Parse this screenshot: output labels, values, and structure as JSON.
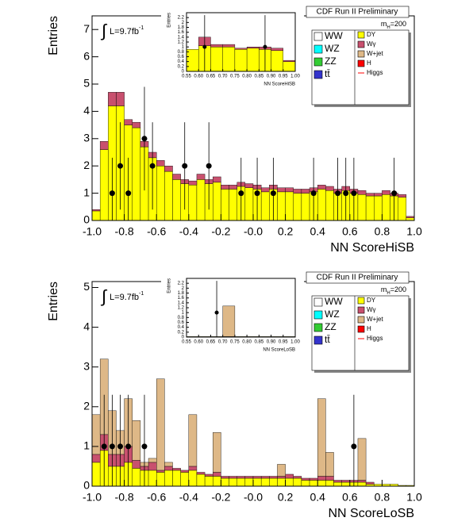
{
  "chart_data": [
    {
      "type": "histogram",
      "y_label": "Entries",
      "x_label": "NN ScoreHiSB",
      "header": "CDF Run II Preliminary",
      "mass_label": [
        "m",
        "H",
        "=200"
      ],
      "lumi_label": [
        "∫",
        "L=9.7fb",
        "-1"
      ],
      "xlim": [
        -1,
        1
      ],
      "ylim": [
        0,
        7.5
      ],
      "xticks": [
        {
          "value": -1,
          "label": "-1.0"
        },
        -0.8,
        -0.6,
        -0.4,
        -0.2,
        {
          "value": 0,
          "label": "-0.0"
        },
        0.2,
        0.4,
        0.6,
        0.8,
        {
          "value": 1,
          "label": "1.0"
        }
      ],
      "yticks": [
        0,
        1,
        2,
        3,
        4,
        5,
        6,
        7
      ],
      "bins": [
        -1,
        -0.95,
        -0.9,
        -0.85,
        -0.8,
        -0.75,
        -0.7,
        -0.65,
        -0.6,
        -0.55,
        -0.5,
        -0.45,
        -0.4,
        -0.35,
        -0.3,
        -0.25,
        -0.2,
        -0.15,
        -0.1,
        -0.05,
        0,
        0.05,
        0.1,
        0.15,
        0.2,
        0.25,
        0.3,
        0.35,
        0.4,
        0.45,
        0.5,
        0.55,
        0.6,
        0.65,
        0.7,
        0.75,
        0.8,
        0.85,
        0.9,
        0.95,
        1
      ],
      "series": [
        {
          "name": "WW",
          "color": "#ffffff"
        },
        {
          "name": "WZ",
          "color": "#00ffff"
        },
        {
          "name": "ZZ",
          "color": "#33cc33"
        },
        {
          "name": "tt̄",
          "color": "#3333cc"
        },
        {
          "name": "DY",
          "color": "#ffff00",
          "values": [
            0.35,
            2.6,
            4.2,
            4.2,
            3.5,
            3.4,
            2.7,
            2.3,
            2.0,
            1.8,
            1.5,
            1.35,
            1.3,
            1.5,
            1.35,
            1.4,
            1.15,
            1.15,
            1.25,
            1.2,
            1.15,
            1.05,
            1.15,
            1.05,
            1.05,
            1.0,
            1.0,
            1.05,
            1.15,
            1.1,
            1.0,
            1.1,
            1.0,
            0.95,
            0.9,
            0.9,
            0.95,
            0.9,
            0.85,
            0.1
          ]
        },
        {
          "name": "Wγ",
          "color": "#c8506e",
          "values": [
            0.05,
            0.3,
            0.5,
            0.5,
            0.2,
            0.2,
            0.2,
            0.2,
            0.2,
            0.2,
            0.2,
            0.15,
            0.15,
            0.2,
            0.15,
            0.2,
            0.15,
            0.15,
            0.15,
            0.15,
            0.15,
            0.15,
            0.15,
            0.15,
            0.15,
            0.15,
            0.15,
            0.15,
            0.15,
            0.15,
            0.15,
            0.15,
            0.15,
            0.15,
            0.1,
            0.1,
            0.15,
            0.1,
            0.1,
            0.05
          ]
        },
        {
          "name": "W+jet",
          "color": "#deb887"
        },
        {
          "name": "H",
          "color": "#ff0000"
        },
        {
          "name": "Higgs",
          "color": "#ff0000",
          "style": "line"
        }
      ],
      "data": {
        "x": [
          -0.875,
          -0.825,
          -0.775,
          -0.675,
          -0.625,
          -0.425,
          -0.275,
          -0.075,
          0.025,
          0.125,
          0.375,
          0.525,
          0.575,
          0.625,
          0.875
        ],
        "values": [
          1,
          2,
          1,
          3,
          2,
          2,
          2,
          1,
          1,
          1,
          1,
          1,
          1,
          1,
          1
        ],
        "errors": [
          1.3,
          1.6,
          1.3,
          1.9,
          1.6,
          1.6,
          1.6,
          1.3,
          1.3,
          1.3,
          1.3,
          1.3,
          1.3,
          1.3,
          1.3
        ]
      },
      "inset": {
        "y_label": "Entries",
        "x_label": "NN ScoreHiSB",
        "xlim": [
          0.55,
          1
        ],
        "ylim": [
          0,
          2.4
        ],
        "xticks": [
          0.55,
          {
            "value": 0.6,
            "label": "0.60"
          },
          0.65,
          {
            "value": 0.7,
            "label": "0.70"
          },
          0.75,
          {
            "value": 0.8,
            "label": "0.80"
          },
          0.85,
          {
            "value": 0.9,
            "label": "0.90"
          },
          0.95,
          {
            "value": 1,
            "label": "1.00"
          }
        ],
        "yticks": [
          0,
          0.2,
          0.4,
          0.6,
          0.8,
          1,
          1.2,
          1.4,
          1.6,
          1.8,
          2,
          2.2
        ],
        "bins": [
          0.55,
          0.6,
          0.65,
          0.7,
          0.75,
          0.8,
          0.85,
          0.9,
          0.95,
          1
        ],
        "series": [
          {
            "color": "#ffff00",
            "values": [
              0.9,
              1.05,
              1.0,
              1.0,
              0.9,
              0.95,
              0.9,
              0.85,
              0.4
            ]
          },
          {
            "color": "#c8506e",
            "values": [
              0,
              0.35,
              0.1,
              0.1,
              0.05,
              0.05,
              0.1,
              0.1,
              0.05
            ]
          }
        ],
        "data": {
          "x": [
            0.625,
            0.875
          ],
          "values": [
            1,
            1
          ],
          "errors": [
            1.3,
            1.3
          ]
        }
      }
    },
    {
      "type": "histogram",
      "y_label": "Entries",
      "x_label": "NN ScoreLoSB",
      "header": "CDF Run II Preliminary",
      "mass_label": [
        "m",
        "H",
        "=200"
      ],
      "lumi_label": [
        "∫",
        "L=9.7fb",
        "-1"
      ],
      "xlim": [
        -1,
        1
      ],
      "ylim": [
        0,
        5.15
      ],
      "xticks": [
        {
          "value": -1,
          "label": "-1.0"
        },
        -0.8,
        -0.6,
        -0.4,
        -0.2,
        {
          "value": 0,
          "label": "-0.0"
        },
        0.2,
        0.4,
        0.6,
        0.8,
        {
          "value": 1,
          "label": "1.0"
        }
      ],
      "yticks": [
        0,
        1,
        2,
        3,
        4,
        5
      ],
      "bins": [
        -1,
        -0.95,
        -0.9,
        -0.85,
        -0.8,
        -0.75,
        -0.7,
        -0.65,
        -0.6,
        -0.55,
        -0.5,
        -0.45,
        -0.4,
        -0.35,
        -0.3,
        -0.25,
        -0.2,
        -0.15,
        -0.1,
        -0.05,
        0,
        0.05,
        0.1,
        0.15,
        0.2,
        0.25,
        0.3,
        0.35,
        0.4,
        0.45,
        0.5,
        0.55,
        0.6,
        0.65,
        0.7,
        0.75,
        0.8,
        0.85,
        0.9,
        0.95,
        1
      ],
      "series": [
        {
          "name": "WW",
          "color": "#ffffff"
        },
        {
          "name": "WZ",
          "color": "#00ffff"
        },
        {
          "name": "ZZ",
          "color": "#33cc33"
        },
        {
          "name": "tt̄",
          "color": "#3333cc"
        },
        {
          "name": "DY",
          "color": "#ffff00",
          "values": [
            0.6,
            0.9,
            0.5,
            0.5,
            0.6,
            0.45,
            0.4,
            0.4,
            0.35,
            0.4,
            0.4,
            0.35,
            0.4,
            0.3,
            0.25,
            0.25,
            0.2,
            0.2,
            0.2,
            0.2,
            0.2,
            0.2,
            0.2,
            0.2,
            0.2,
            0.2,
            0.15,
            0.15,
            0.15,
            0.15,
            0.1,
            0.1,
            0.1,
            0.1,
            0.05,
            0.05,
            0.05,
            0.05,
            0.02,
            0.02
          ]
        },
        {
          "name": "Wγ",
          "color": "#c8506e",
          "values": [
            0.2,
            0.4,
            0.3,
            0.3,
            0.4,
            0.2,
            0.1,
            0.2,
            0.05,
            0.1,
            0.05,
            0.05,
            0.1,
            0.05,
            0.05,
            0.1,
            0.05,
            0.05,
            0.05,
            0.05,
            0.05,
            0.05,
            0.05,
            0.05,
            0.1,
            0.05,
            0.05,
            0.05,
            0.1,
            0.1,
            0.05,
            0.05,
            0.05,
            0.05,
            0.05,
            0,
            0,
            0,
            0,
            0
          ]
        },
        {
          "name": "W+jet",
          "color": "#deb887",
          "values": [
            1.0,
            1.9,
            1.1,
            0.6,
            1.2,
            1.0,
            0.1,
            0.1,
            2.3,
            0.1,
            0,
            0,
            1.3,
            0,
            0,
            1.0,
            0,
            0,
            0,
            0,
            0,
            0,
            0,
            0.3,
            0,
            0,
            0,
            0,
            1.95,
            0.6,
            0,
            0,
            0,
            1.05,
            0,
            0,
            0,
            0,
            0,
            0
          ]
        },
        {
          "name": "H",
          "color": "#ff0000"
        },
        {
          "name": "Higgs",
          "color": "#ff0000",
          "style": "line"
        }
      ],
      "data": {
        "x": [
          -0.925,
          -0.875,
          -0.825,
          -0.775,
          -0.675,
          0.625
        ],
        "values": [
          1,
          1,
          1,
          1,
          1,
          1
        ],
        "errors": [
          1.3,
          1.3,
          1.3,
          1.3,
          1.3,
          1.3
        ]
      },
      "inset": {
        "y_label": "Entries",
        "x_label": "NN ScoreLoSB",
        "xlim": [
          0.55,
          1
        ],
        "ylim": [
          0,
          2.4
        ],
        "xticks": [
          0.55,
          {
            "value": 0.6,
            "label": "0.60"
          },
          0.65,
          {
            "value": 0.7,
            "label": "0.70"
          },
          0.75,
          {
            "value": 0.8,
            "label": "0.80"
          },
          0.85,
          {
            "value": 0.9,
            "label": "0.90"
          },
          0.95,
          {
            "value": 1,
            "label": "1.00"
          }
        ],
        "yticks": [
          0,
          0.2,
          0.4,
          0.6,
          0.8,
          1,
          1.2,
          1.4,
          1.6,
          1.8,
          2,
          2.2
        ],
        "bins": [
          0.55,
          0.6,
          0.65,
          0.7,
          0.75,
          0.8,
          0.85,
          0.9,
          0.95,
          1
        ],
        "series": [
          {
            "color": "#ffff00",
            "values": [
              0.02,
              0.02,
              0.02,
              0.02,
              0.02,
              0.02,
              0.02,
              0.02,
              0.02
            ]
          },
          {
            "color": "#deb887",
            "values": [
              0,
              0,
              0,
              1.25,
              0,
              0,
              0,
              0,
              0
            ]
          }
        ],
        "data": {
          "x": [
            0.675
          ],
          "values": [
            1
          ],
          "errors": [
            1.3
          ]
        }
      }
    }
  ]
}
